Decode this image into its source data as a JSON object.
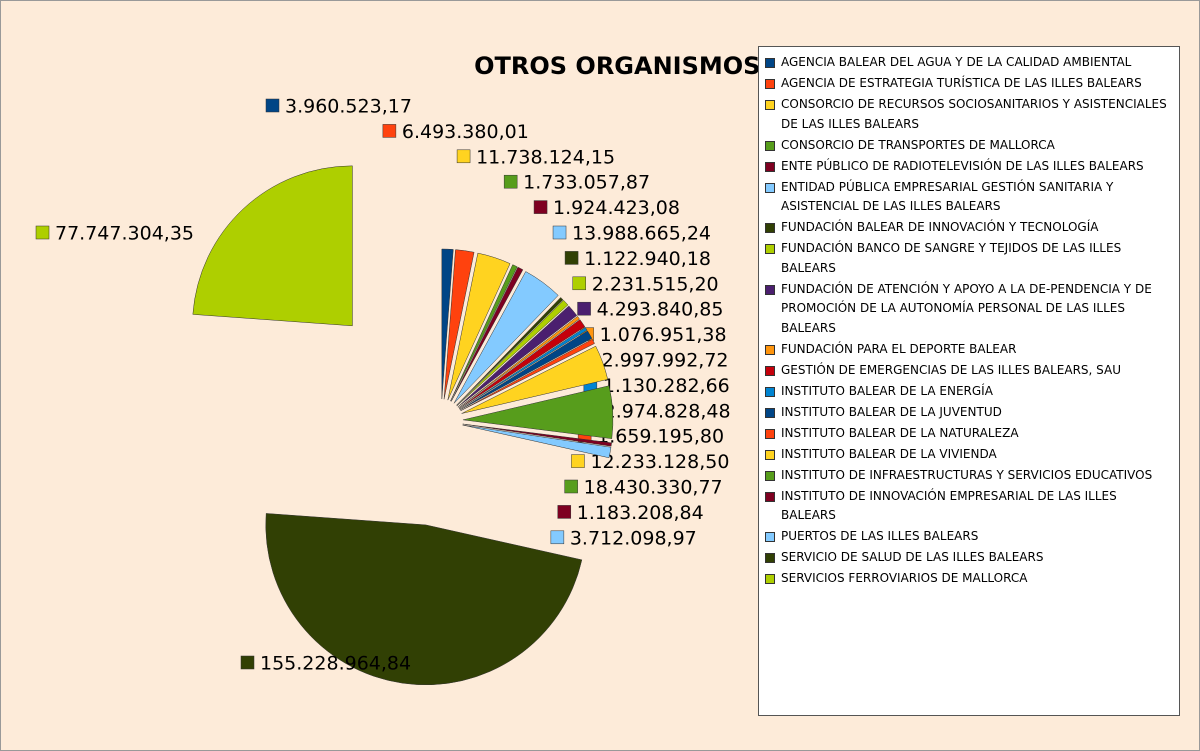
{
  "chart_data": {
    "type": "pie",
    "title": "OTROS ORGANISMOS*",
    "categories": [
      "AGENCIA BALEAR DEL AGUA Y DE LA CALIDAD AMBIENTAL",
      "AGENCIA DE ESTRATEGIA TURÍSTICA DE LAS ILLES BALEARS",
      "CONSORCIO DE RECURSOS SOCIOSANITARIOS Y ASISTENCIALES DE LAS ILLES BALEARS",
      "CONSORCIO DE TRANSPORTES DE MALLORCA",
      "ENTE PÚBLICO DE RADIOTELEVISIÓN DE LAS ILLES BALEARS",
      "ENTIDAD PÚBLICA EMPRESARIAL GESTIÓN SANITARIA Y ASISTENCIAL DE LAS ILLES BALEARS",
      "FUNDACIÓN BALEAR DE INNOVACIÓN Y TECNOLOGÍA",
      "FUNDACIÓN BANCO DE SANGRE Y TEJIDOS DE LAS ILLES BALEARS",
      "FUNDACIÓN DE ATENCIÓN Y APOYO A LA DE-PENDENCIA Y DE PROMOCIÓN DE LA AUTONOMÍA PERSONAL DE LAS ILLES BALEARS",
      "FUNDACIÓN PARA EL DEPORTE BALEAR",
      "GESTIÓN DE EMERGENCIAS DE LAS ILLES BALEARS, SAU",
      "INSTITUTO BALEAR DE LA ENERGÍA",
      "INSTITUTO BALEAR DE LA JUVENTUD",
      "INSTITUTO BALEAR DE LA NATURALEZA",
      "INSTITUTO BALEAR DE LA VIVIENDA",
      "INSTITUTO DE INFRAESTRUCTURAS Y SERVICIOS EDUCATIVOS",
      "INSTITUTO DE INNOVACIÓN EMPRESARIAL DE LAS ILLES BALEARS",
      "PUERTOS DE LAS ILLES BALEARS",
      "SERVICIO DE SALUD DE LAS ILLES BALEARS",
      "SERVICIOS FERROVIARIOS DE MALLORCA"
    ],
    "values": [
      3960523.17,
      6493380.01,
      11738124.15,
      1733057.87,
      1924423.08,
      13988665.24,
      1122940.18,
      2231515.2,
      4293840.85,
      1076951.38,
      2997992.72,
      1130282.66,
      2974828.48,
      1659195.8,
      12233128.5,
      18430330.77,
      1183208.84,
      3712098.97,
      155228964.84,
      77747304.35
    ],
    "value_labels": [
      "3.960.523,17",
      "6.493.380,01",
      "11.738.124,15",
      "1.733.057,87",
      "1.924.423,08",
      "13.988.665,24",
      "1.122.940,18",
      "2.231.515,20",
      "4.293.840,85",
      "1.076.951,38",
      "2.997.992,72",
      "1.130.282,66",
      "2.974.828,48",
      "1.659.195,80",
      "12.233.128,50",
      "18.430.330,77",
      "1.183.208,84",
      "3.712.098,97",
      "155.228.964,84",
      "77.747.304,35"
    ],
    "colors": [
      "#004586",
      "#ff420e",
      "#ffd320",
      "#579d1c",
      "#7e0021",
      "#83caff",
      "#314004",
      "#aecf00",
      "#4b1f6f",
      "#ff950e",
      "#c5000b",
      "#0084d1",
      "#004586",
      "#ff420e",
      "#ffd320",
      "#579d1c",
      "#7e0021",
      "#83caff",
      "#314004",
      "#aecf00"
    ],
    "legend": "right"
  }
}
